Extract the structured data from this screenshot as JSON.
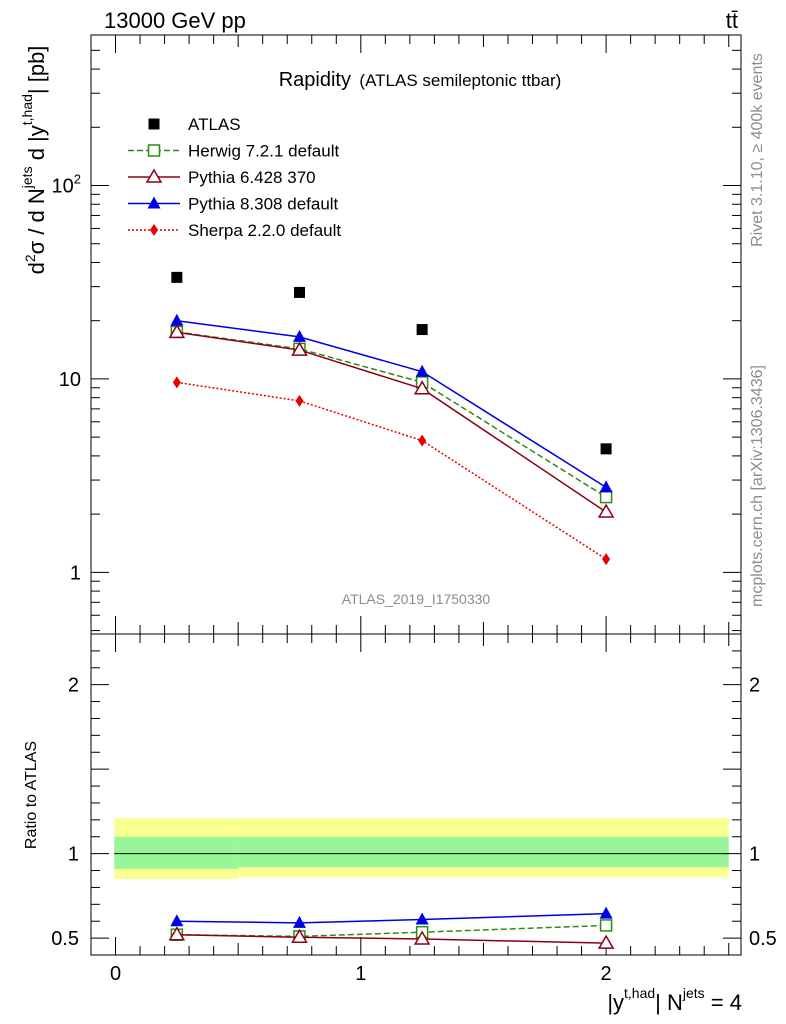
{
  "header": {
    "energy_label": "13000 GeV pp",
    "process_label": "tt̄"
  },
  "side": {
    "rivet": "Rivet 3.1.10, ≥ 400k events",
    "mcplots": "mcplots.cern.ch [arXiv:1306.3436]"
  },
  "colors": {
    "atlas": "#000000",
    "herwig": "#2e8b13",
    "pythia6": "#8b0016",
    "pythia8": "#0000e6",
    "sherpa": "#e60000",
    "band_inner": "#98f598",
    "band_outer": "#fbff90"
  },
  "chart_data": [
    {
      "type": "scatter",
      "title": "Rapidity",
      "subtitle": "(ATLAS semileptonic ttbar)",
      "ylabel": "d²σ / d N^jets d |y^t,had| [pb]",
      "yscale": "log",
      "ylim": [
        0.48,
        600
      ],
      "xlim": [
        -0.1,
        2.55
      ],
      "analysis_label": "ATLAS_2019_I1750330",
      "legend_position": "top-left",
      "y_tick_labels": [
        "1",
        "10",
        "10²"
      ],
      "x": [
        0.25,
        0.75,
        1.25,
        2.0
      ],
      "series": [
        {
          "name": "ATLAS",
          "marker": "square-filled",
          "line": "none",
          "values": [
            33.5,
            28.0,
            18.0,
            4.35
          ]
        },
        {
          "name": "Herwig 7.2.1 default",
          "marker": "square-open",
          "line": "dashed",
          "values": [
            17.5,
            14.3,
            9.6,
            2.45
          ]
        },
        {
          "name": "Pythia 6.428 370",
          "marker": "triangle-open",
          "line": "solid",
          "values": [
            17.4,
            14.1,
            8.9,
            2.05
          ]
        },
        {
          "name": "Pythia 8.308 default",
          "marker": "triangle-filled",
          "line": "solid",
          "values": [
            20.0,
            16.5,
            10.9,
            2.75
          ]
        },
        {
          "name": "Sherpa 2.2.0 default",
          "marker": "diamond-filled",
          "line": "dotted",
          "values": [
            9.6,
            7.7,
            4.8,
            1.17
          ]
        }
      ]
    },
    {
      "type": "line",
      "ylabel": "Ratio to ATLAS",
      "xlabel": "|y^t,had| N^jets = 4",
      "xlim": [
        -0.1,
        2.55
      ],
      "ylim": [
        0.4,
        2.3
      ],
      "x_tick_labels": [
        "0",
        "1",
        "2"
      ],
      "y_tick_labels": [
        "0.5",
        "1",
        "2"
      ],
      "reference_band": {
        "inner": [
          [
            -0.1,
            0.5,
            0.91,
            1.1
          ],
          [
            0.5,
            2.55,
            0.92,
            1.1
          ]
        ],
        "outer": [
          [
            -0.1,
            0.5,
            0.85,
            1.21
          ],
          [
            0.5,
            2.55,
            0.86,
            1.21
          ]
        ]
      },
      "x": [
        0.25,
        0.75,
        1.25,
        2.0
      ],
      "series": [
        {
          "name": "Herwig 7.2.1 default",
          "values": [
            0.52,
            0.51,
            0.535,
            0.575
          ]
        },
        {
          "name": "Pythia 6.428 370",
          "values": [
            0.52,
            0.505,
            0.495,
            0.47
          ]
        },
        {
          "name": "Pythia 8.308 default",
          "values": [
            0.6,
            0.59,
            0.61,
            0.645
          ]
        }
      ]
    }
  ]
}
